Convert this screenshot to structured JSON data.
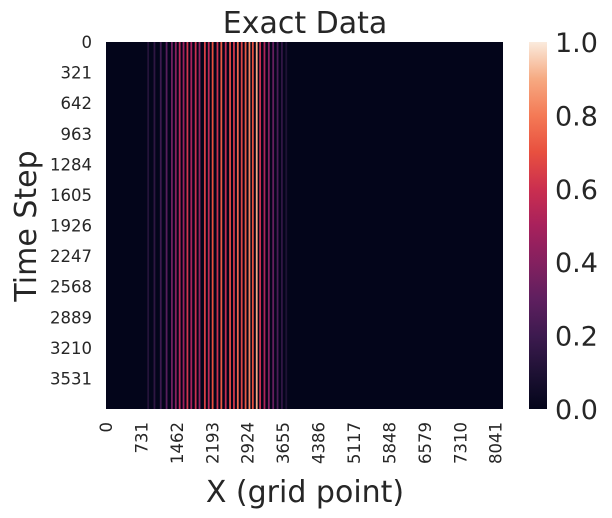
{
  "chart_data": {
    "type": "heatmap",
    "title": "Exact Data",
    "xlabel": "X (grid point)",
    "ylabel": "Time Step",
    "x_range": [
      0,
      8192
    ],
    "y_range": [
      0,
      3852
    ],
    "x_ticks": [
      "0",
      "731",
      "1462",
      "2193",
      "2924",
      "3655",
      "4386",
      "5117",
      "5848",
      "6579",
      "7310",
      "8041"
    ],
    "y_ticks": [
      "0",
      "321",
      "642",
      "963",
      "1284",
      "1605",
      "1926",
      "2247",
      "2568",
      "2889",
      "3210",
      "3531"
    ],
    "colorbar": {
      "range": [
        0.0,
        1.0
      ],
      "ticks": [
        "0.0",
        "0.2",
        "0.4",
        "0.6",
        "0.8",
        "1.0"
      ],
      "colormap": "rocket"
    },
    "columns": [
      {
        "x": 870,
        "value": 0.12
      },
      {
        "x": 1000,
        "value": 0.15
      },
      {
        "x": 1130,
        "value": 0.2
      },
      {
        "x": 1250,
        "value": 0.28
      },
      {
        "x": 1360,
        "value": 0.35
      },
      {
        "x": 1440,
        "value": 0.42
      },
      {
        "x": 1520,
        "value": 0.55
      },
      {
        "x": 1600,
        "value": 0.48
      },
      {
        "x": 1680,
        "value": 0.62
      },
      {
        "x": 1760,
        "value": 0.5
      },
      {
        "x": 1850,
        "value": 0.6
      },
      {
        "x": 1930,
        "value": 0.45
      },
      {
        "x": 2040,
        "value": 0.65
      },
      {
        "x": 2120,
        "value": 0.55
      },
      {
        "x": 2200,
        "value": 0.7
      },
      {
        "x": 2300,
        "value": 0.6
      },
      {
        "x": 2380,
        "value": 0.72
      },
      {
        "x": 2470,
        "value": 0.58
      },
      {
        "x": 2560,
        "value": 0.68
      },
      {
        "x": 2640,
        "value": 0.62
      },
      {
        "x": 2720,
        "value": 0.75
      },
      {
        "x": 2800,
        "value": 0.66
      },
      {
        "x": 2880,
        "value": 0.72
      },
      {
        "x": 2960,
        "value": 0.82
      },
      {
        "x": 3030,
        "value": 0.7
      },
      {
        "x": 3110,
        "value": 0.9
      },
      {
        "x": 3180,
        "value": 0.6
      },
      {
        "x": 3270,
        "value": 0.52
      },
      {
        "x": 3360,
        "value": 0.4
      },
      {
        "x": 3450,
        "value": 0.32
      },
      {
        "x": 3540,
        "value": 0.24
      },
      {
        "x": 3630,
        "value": 0.16
      },
      {
        "x": 3720,
        "value": 0.1
      }
    ]
  }
}
